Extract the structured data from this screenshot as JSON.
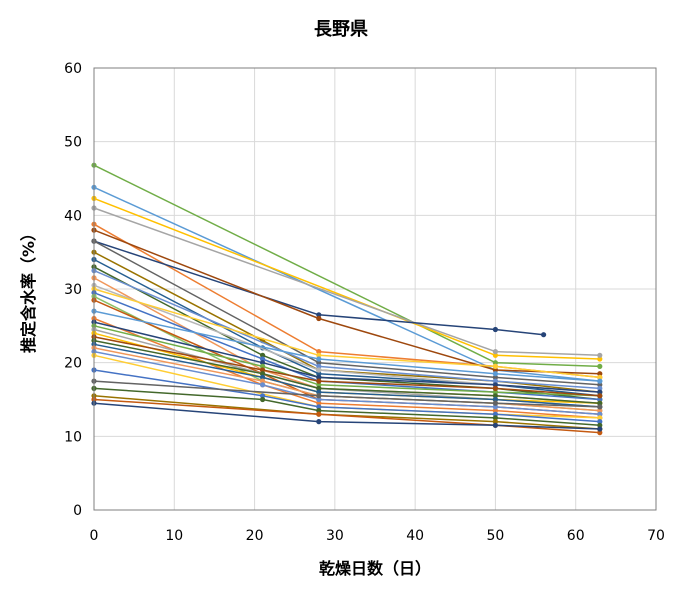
{
  "chart_data": {
    "type": "line",
    "title": "長野県",
    "xlabel": "乾燥日数（日）",
    "ylabel": "推定含水率（%）",
    "xlim": [
      0,
      70
    ],
    "ylim": [
      0,
      60
    ],
    "xticks": [
      0,
      10,
      20,
      30,
      40,
      50,
      60,
      70
    ],
    "yticks": [
      0,
      10,
      20,
      30,
      40,
      50,
      60
    ],
    "grid": true,
    "legend": "none",
    "series": [
      {
        "color": "#70ad47",
        "points": [
          [
            0,
            46.8
          ],
          [
            50,
            20.0
          ],
          [
            63,
            19.5
          ]
        ]
      },
      {
        "color": "#5b9bd5",
        "points": [
          [
            0,
            43.8
          ],
          [
            50,
            19.0
          ],
          [
            63,
            17.5
          ]
        ]
      },
      {
        "color": "#ffc000",
        "points": [
          [
            0,
            42.3
          ],
          [
            50,
            21.0
          ],
          [
            63,
            20.5
          ]
        ]
      },
      {
        "color": "#a5a5a5",
        "points": [
          [
            0,
            41.0
          ],
          [
            50,
            21.5
          ],
          [
            63,
            21.0
          ]
        ]
      },
      {
        "color": "#ed7d31",
        "points": [
          [
            0,
            38.8
          ],
          [
            28,
            21.5
          ],
          [
            50,
            19.5
          ],
          [
            63,
            18.0
          ]
        ]
      },
      {
        "color": "#264478",
        "points": [
          [
            0,
            36.5
          ],
          [
            28,
            26.5
          ],
          [
            50,
            24.5
          ],
          [
            56,
            23.8
          ]
        ]
      },
      {
        "color": "#9e480e",
        "points": [
          [
            0,
            38.0
          ],
          [
            28,
            26.0
          ],
          [
            50,
            19.0
          ],
          [
            63,
            18.5
          ]
        ]
      },
      {
        "color": "#636363",
        "points": [
          [
            0,
            36.5
          ],
          [
            28,
            20.0
          ],
          [
            50,
            18.0
          ],
          [
            63,
            17.0
          ]
        ]
      },
      {
        "color": "#997300",
        "points": [
          [
            0,
            35.0
          ],
          [
            21,
            23.0
          ],
          [
            28,
            19.0
          ],
          [
            50,
            17.5
          ],
          [
            63,
            16.0
          ]
        ]
      },
      {
        "color": "#255e91",
        "points": [
          [
            0,
            34.0
          ],
          [
            21,
            22.0
          ],
          [
            28,
            18.5
          ],
          [
            50,
            17.0
          ],
          [
            63,
            15.5
          ]
        ]
      },
      {
        "color": "#43682b",
        "points": [
          [
            0,
            33.0
          ],
          [
            21,
            21.0
          ],
          [
            28,
            18.0
          ],
          [
            50,
            16.5
          ],
          [
            63,
            15.0
          ]
        ]
      },
      {
        "color": "#698ed0",
        "points": [
          [
            0,
            32.5
          ],
          [
            28,
            19.5
          ],
          [
            50,
            17.5
          ],
          [
            63,
            16.5
          ]
        ]
      },
      {
        "color": "#f1975a",
        "points": [
          [
            0,
            31.5
          ],
          [
            21,
            19.0
          ],
          [
            28,
            16.5
          ],
          [
            50,
            15.5
          ],
          [
            63,
            14.5
          ]
        ]
      },
      {
        "color": "#b7b7b7",
        "points": [
          [
            0,
            30.5
          ],
          [
            28,
            19.0
          ],
          [
            50,
            17.0
          ],
          [
            63,
            16.0
          ]
        ]
      },
      {
        "color": "#ffcd33",
        "points": [
          [
            0,
            30.0
          ],
          [
            28,
            21.0
          ],
          [
            50,
            19.5
          ],
          [
            63,
            18.0
          ]
        ]
      },
      {
        "color": "#4472c4",
        "points": [
          [
            0,
            29.5
          ],
          [
            21,
            20.5
          ],
          [
            28,
            17.5
          ],
          [
            50,
            16.0
          ],
          [
            63,
            15.0
          ]
        ]
      },
      {
        "color": "#8cc168",
        "points": [
          [
            0,
            29.0
          ],
          [
            21,
            17.5
          ],
          [
            28,
            15.5
          ],
          [
            50,
            14.5
          ],
          [
            63,
            13.5
          ]
        ]
      },
      {
        "color": "#c55a11",
        "points": [
          [
            0,
            28.5
          ],
          [
            21,
            18.5
          ],
          [
            28,
            15.0
          ],
          [
            50,
            14.0
          ],
          [
            63,
            13.0
          ]
        ]
      },
      {
        "color": "#5b9bd5",
        "points": [
          [
            0,
            27.0
          ],
          [
            28,
            20.5
          ],
          [
            50,
            18.5
          ],
          [
            63,
            17.5
          ]
        ]
      },
      {
        "color": "#ed7d31",
        "points": [
          [
            0,
            26.0
          ],
          [
            21,
            17.0
          ],
          [
            28,
            14.5
          ],
          [
            50,
            13.5
          ],
          [
            63,
            12.5
          ]
        ]
      },
      {
        "color": "#264478",
        "points": [
          [
            0,
            25.5
          ],
          [
            21,
            20.0
          ],
          [
            28,
            18.0
          ],
          [
            50,
            17.0
          ],
          [
            63,
            16.0
          ]
        ]
      },
      {
        "color": "#70ad47",
        "points": [
          [
            0,
            25.0
          ],
          [
            21,
            19.5
          ],
          [
            28,
            17.0
          ],
          [
            50,
            16.0
          ],
          [
            63,
            15.5
          ]
        ]
      },
      {
        "color": "#a5a5a5",
        "points": [
          [
            0,
            24.5
          ],
          [
            28,
            16.5
          ],
          [
            50,
            15.0
          ],
          [
            63,
            14.0
          ]
        ]
      },
      {
        "color": "#ffc000",
        "points": [
          [
            0,
            24.0
          ],
          [
            21,
            18.0
          ],
          [
            28,
            16.0
          ],
          [
            50,
            15.0
          ],
          [
            63,
            14.5
          ]
        ]
      },
      {
        "color": "#9e480e",
        "points": [
          [
            0,
            23.5
          ],
          [
            21,
            19.0
          ],
          [
            28,
            17.5
          ],
          [
            50,
            16.5
          ],
          [
            63,
            15.5
          ]
        ]
      },
      {
        "color": "#43682b",
        "points": [
          [
            0,
            23.0
          ],
          [
            21,
            18.5
          ],
          [
            28,
            16.5
          ],
          [
            50,
            15.5
          ],
          [
            63,
            14.5
          ]
        ]
      },
      {
        "color": "#255e91",
        "points": [
          [
            0,
            22.5
          ],
          [
            21,
            18.0
          ],
          [
            28,
            16.0
          ],
          [
            50,
            15.0
          ],
          [
            63,
            14.0
          ]
        ]
      },
      {
        "color": "#f1975a",
        "points": [
          [
            0,
            22.0
          ],
          [
            21,
            17.5
          ],
          [
            28,
            15.5
          ],
          [
            50,
            14.5
          ],
          [
            63,
            13.5
          ]
        ]
      },
      {
        "color": "#698ed0",
        "points": [
          [
            0,
            21.5
          ],
          [
            21,
            17.0
          ],
          [
            28,
            15.0
          ],
          [
            50,
            14.0
          ],
          [
            63,
            13.0
          ]
        ]
      },
      {
        "color": "#ffcd33",
        "points": [
          [
            0,
            21.0
          ],
          [
            28,
            14.0
          ],
          [
            50,
            13.0
          ],
          [
            63,
            12.5
          ]
        ]
      },
      {
        "color": "#4472c4",
        "points": [
          [
            0,
            19.0
          ],
          [
            21,
            15.5
          ],
          [
            28,
            14.0
          ],
          [
            50,
            13.0
          ],
          [
            63,
            12.0
          ]
        ]
      },
      {
        "color": "#636363",
        "points": [
          [
            0,
            17.5
          ],
          [
            28,
            15.5
          ],
          [
            50,
            14.5
          ],
          [
            63,
            14.0
          ]
        ]
      },
      {
        "color": "#43682b",
        "points": [
          [
            0,
            16.5
          ],
          [
            21,
            15.0
          ],
          [
            28,
            13.5
          ],
          [
            50,
            12.5
          ],
          [
            63,
            11.5
          ]
        ]
      },
      {
        "color": "#997300",
        "points": [
          [
            0,
            15.5
          ],
          [
            28,
            13.0
          ],
          [
            50,
            12.0
          ],
          [
            63,
            11.0
          ]
        ]
      },
      {
        "color": "#c55a11",
        "points": [
          [
            0,
            15.0
          ],
          [
            28,
            13.0
          ],
          [
            50,
            11.5
          ],
          [
            63,
            10.5
          ]
        ]
      },
      {
        "color": "#264478",
        "points": [
          [
            0,
            14.5
          ],
          [
            28,
            12.0
          ],
          [
            50,
            11.5
          ],
          [
            63,
            11.0
          ]
        ]
      }
    ]
  }
}
